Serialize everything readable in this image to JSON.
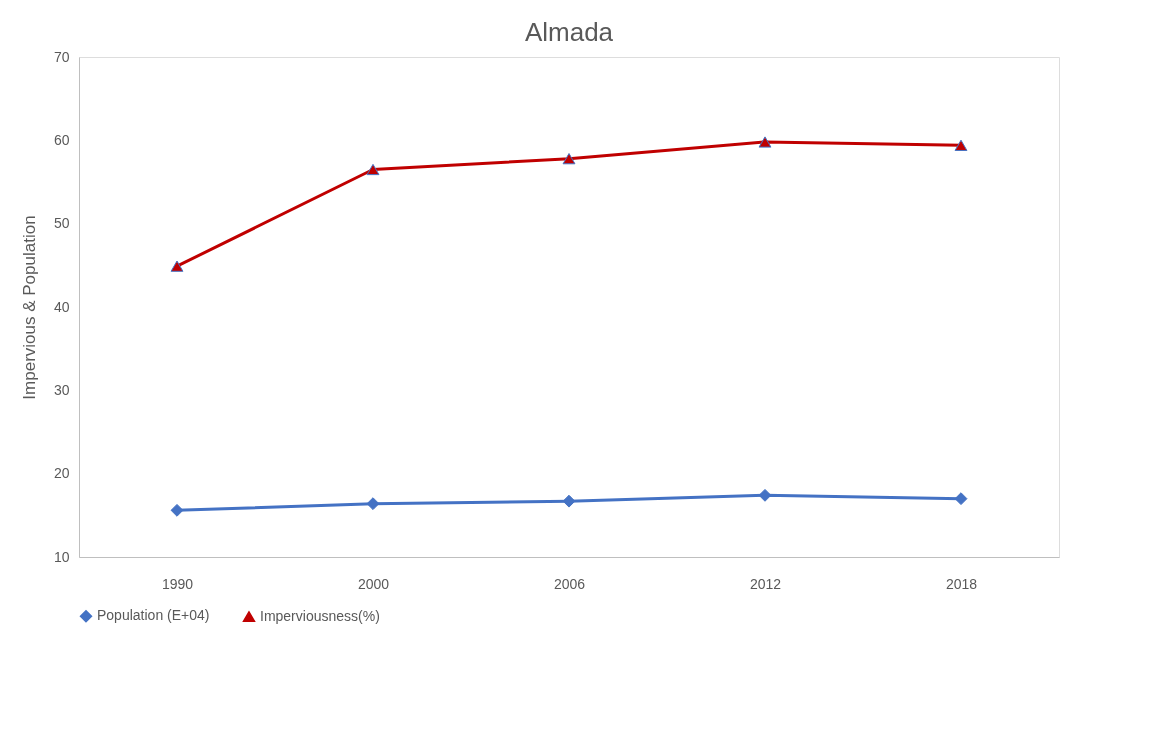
{
  "chart_data": {
    "type": "line",
    "title": "Almada",
    "ylabel": "Impervious & Population",
    "categories": [
      "1990",
      "2000",
      "2006",
      "2012",
      "2018"
    ],
    "series": [
      {
        "name": "Population (E+04)",
        "color": "#4472c4",
        "marker": "diamond",
        "values": [
          15.6,
          16.4,
          16.7,
          17.4,
          17.0
        ]
      },
      {
        "name": "Imperviousness(%)",
        "color": "#c00000",
        "marker": "triangle",
        "values": [
          44.9,
          56.5,
          57.8,
          59.8,
          59.4
        ]
      }
    ],
    "ylim": [
      10,
      70
    ],
    "yticks": [
      10,
      20,
      30,
      40,
      50,
      60,
      70
    ],
    "grid": false,
    "legend": "bottom",
    "line_style": "solid"
  }
}
